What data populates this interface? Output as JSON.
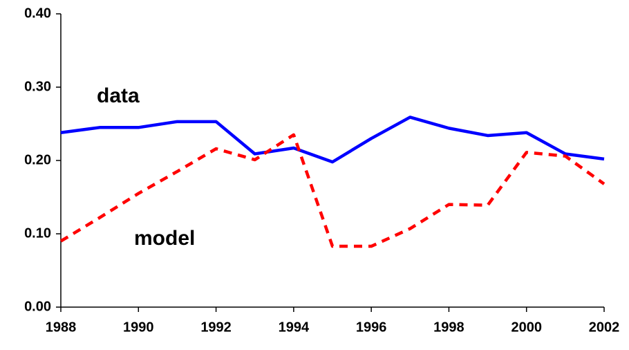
{
  "chart_data": {
    "type": "line",
    "x": [
      1988,
      1989,
      1990,
      1991,
      1992,
      1993,
      1994,
      1995,
      1996,
      1997,
      1998,
      1999,
      2000,
      2001,
      2002
    ],
    "series": [
      {
        "name": "data",
        "color": "#0000ff",
        "dashed": false,
        "values": [
          0.238,
          0.245,
          0.245,
          0.253,
          0.253,
          0.209,
          0.217,
          0.198,
          0.23,
          0.259,
          0.244,
          0.234,
          0.238,
          0.209,
          0.202
        ]
      },
      {
        "name": "model",
        "color": "#ff0000",
        "dashed": true,
        "values": [
          0.09,
          0.122,
          0.155,
          0.185,
          0.216,
          0.201,
          0.235,
          0.083,
          0.083,
          0.107,
          0.14,
          0.139,
          0.211,
          0.206,
          0.168
        ]
      }
    ],
    "xlim": [
      1988,
      2002
    ],
    "xticks": [
      1988,
      1990,
      1992,
      1994,
      1996,
      1998,
      2000,
      2002
    ],
    "ylim": [
      0,
      0.4
    ],
    "yticks": [
      {
        "value": 0,
        "label": "0.00"
      },
      {
        "value": 0.1,
        "label": "0.10"
      },
      {
        "value": 0.2,
        "label": "0.20"
      },
      {
        "value": 0.3,
        "label": "0.30"
      },
      {
        "value": 0.4,
        "label": "0.40"
      }
    ],
    "grid": false
  }
}
